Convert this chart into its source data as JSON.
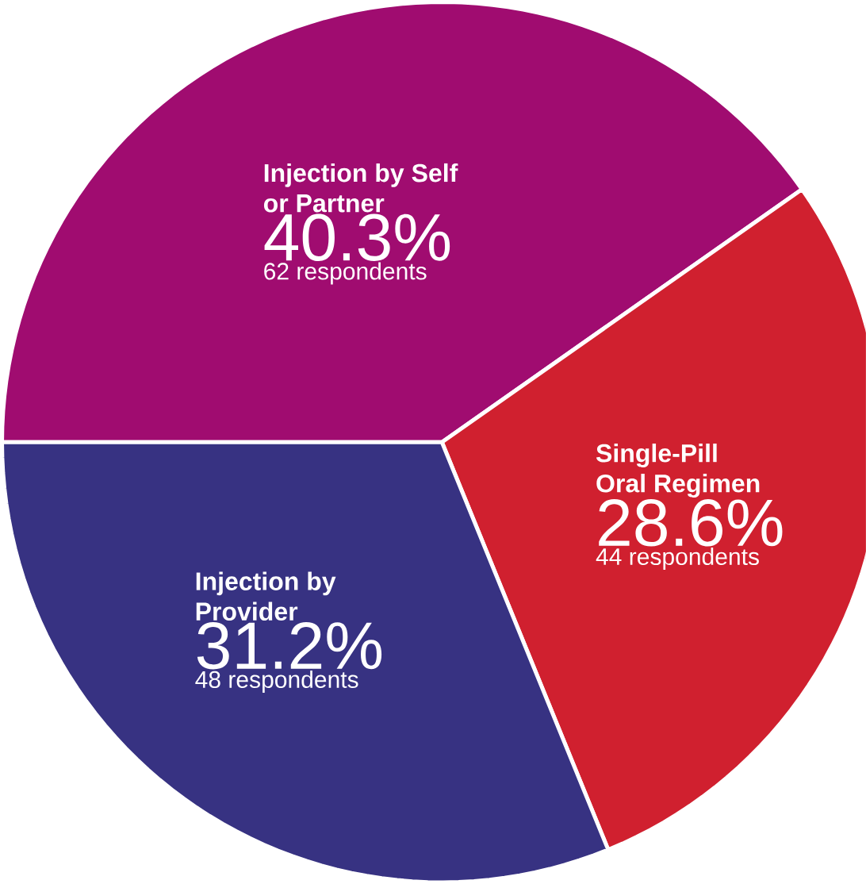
{
  "chart_data": {
    "type": "pie",
    "categories": [
      "Injection by Self or Partner",
      "Single-Pill Oral Regimen",
      "Injection by Provider"
    ],
    "values": [
      40.3,
      28.6,
      31.2
    ],
    "colors": [
      "#a00c70",
      "#d0202f",
      "#373282"
    ],
    "value_labels": [
      "40.3%",
      "28.6%",
      "31.2%"
    ],
    "annotations": [
      "62 respondents",
      "44 respondents",
      "48 respondents"
    ]
  }
}
